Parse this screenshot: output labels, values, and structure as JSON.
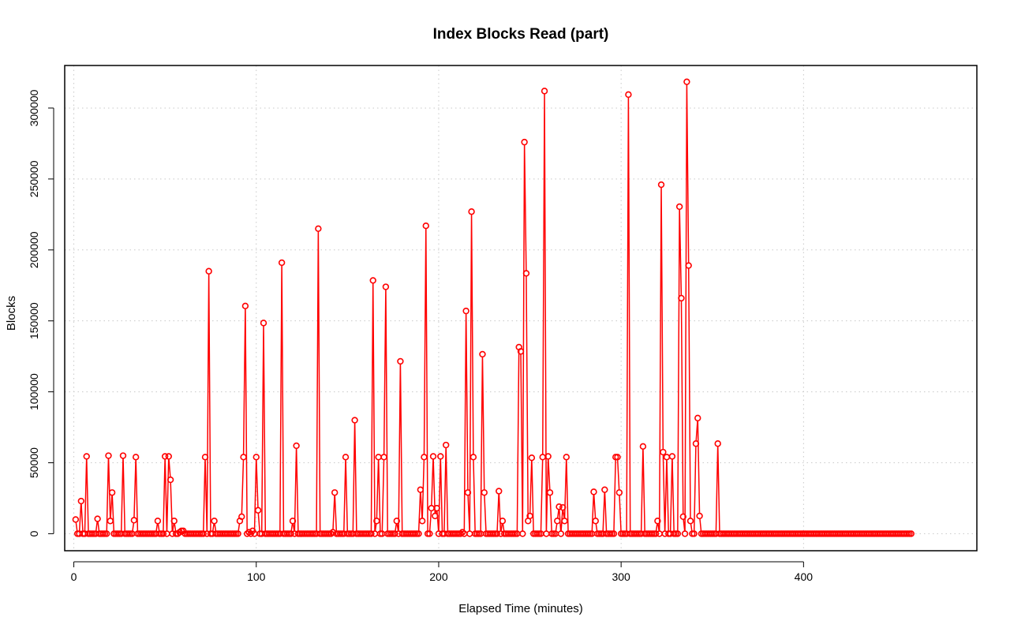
{
  "chart_data": {
    "type": "line",
    "title": "Index Blocks Read (part)",
    "xlabel": "Elapsed Time (minutes)",
    "ylabel": "Blocks",
    "xlim": [
      -5,
      495
    ],
    "ylim": [
      -12000,
      330000
    ],
    "x_ticks": [
      0,
      100,
      200,
      300,
      400
    ],
    "x_tick_labels": [
      "0",
      "100",
      "200",
      "300",
      "400"
    ],
    "y_ticks": [
      0,
      50000,
      100000,
      150000,
      200000,
      250000,
      300000
    ],
    "y_tick_labels": [
      "0",
      "50000",
      "100000",
      "150000",
      "200000",
      "250000",
      "300000"
    ],
    "grid": true,
    "series_color": "#ff0000",
    "x_start": 1,
    "x_step": 1,
    "values": [
      10000,
      0,
      0,
      23000,
      0,
      0,
      54500,
      0,
      0,
      0,
      0,
      0,
      10500,
      0,
      0,
      0,
      0,
      0,
      55000,
      9000,
      29000,
      0,
      0,
      0,
      0,
      0,
      55000,
      0,
      0,
      0,
      0,
      0,
      9500,
      54000,
      0,
      0,
      0,
      0,
      0,
      0,
      0,
      0,
      0,
      0,
      0,
      9000,
      0,
      0,
      0,
      54500,
      0,
      54500,
      38000,
      0,
      9000,
      0,
      0,
      1000,
      2000,
      2000,
      0,
      0,
      0,
      0,
      0,
      0,
      0,
      0,
      0,
      0,
      0,
      54000,
      0,
      185000,
      0,
      0,
      9000,
      0,
      0,
      0,
      0,
      0,
      0,
      0,
      0,
      0,
      0,
      0,
      0,
      0,
      9000,
      12000,
      54000,
      160500,
      0,
      1000,
      0,
      2000,
      0,
      54000,
      16500,
      0,
      0,
      148500,
      0,
      0,
      0,
      0,
      0,
      0,
      0,
      0,
      0,
      191000,
      0,
      0,
      0,
      0,
      0,
      9000,
      0,
      62000,
      0,
      0,
      0,
      0,
      0,
      0,
      0,
      0,
      0,
      0,
      0,
      215000,
      0,
      0,
      0,
      0,
      0,
      0,
      0,
      1000,
      29000,
      0,
      0,
      0,
      0,
      0,
      54000,
      0,
      0,
      0,
      0,
      80000,
      0,
      0,
      0,
      0,
      0,
      0,
      0,
      0,
      0,
      178500,
      0,
      9000,
      54000,
      0,
      0,
      54000,
      174000,
      0,
      0,
      0,
      0,
      0,
      9000,
      0,
      121500,
      0,
      0,
      0,
      0,
      0,
      0,
      0,
      0,
      0,
      0,
      31000,
      9000,
      54000,
      217000,
      0,
      0,
      18000,
      54500,
      12500,
      18000,
      0,
      54500,
      0,
      0,
      62500,
      0,
      0,
      0,
      0,
      0,
      0,
      0,
      0,
      1000,
      0,
      157000,
      29000,
      0,
      227000,
      54000,
      0,
      0,
      0,
      0,
      126500,
      29000,
      0,
      0,
      0,
      0,
      0,
      0,
      0,
      30000,
      0,
      9000,
      0,
      0,
      0,
      0,
      0,
      0,
      0,
      0,
      131500,
      128500,
      0,
      276000,
      183500,
      9000,
      12500,
      53500,
      0,
      0,
      0,
      0,
      0,
      54000,
      312000,
      0,
      54500,
      29000,
      0,
      0,
      0,
      9000,
      19000,
      0,
      18500,
      9000,
      54000,
      0,
      0,
      0,
      0,
      0,
      0,
      0,
      0,
      0,
      0,
      0,
      0,
      0,
      0,
      29500,
      9000,
      0,
      0,
      0,
      0,
      31000,
      0,
      0,
      0,
      0,
      0,
      54000,
      54000,
      29000,
      0,
      0,
      0,
      0,
      309500,
      0,
      0,
      0,
      0,
      0,
      0,
      0,
      61500,
      0,
      0,
      0,
      0,
      0,
      0,
      0,
      9000,
      0,
      246000,
      57500,
      0,
      54000,
      0,
      0,
      54500,
      0,
      0,
      0,
      230500,
      166000,
      12000,
      0,
      318500,
      189000,
      9000,
      0,
      0,
      63500,
      81500,
      12500,
      0,
      0,
      0,
      0,
      0,
      0,
      0,
      0,
      0,
      63500,
      0,
      0,
      0,
      0,
      0,
      0,
      0,
      0,
      0,
      0,
      0,
      0,
      0,
      0,
      0,
      0,
      0,
      0,
      0,
      0,
      0,
      0,
      0,
      0,
      0,
      0,
      0,
      0,
      0,
      0,
      0,
      0,
      0,
      0,
      0,
      0,
      0,
      0,
      0,
      0,
      0,
      0,
      0,
      0,
      0,
      0,
      0,
      0,
      0,
      0,
      0,
      0,
      0,
      0,
      0,
      0,
      0,
      0,
      0,
      0,
      0,
      0,
      0,
      0,
      0,
      0,
      0,
      0,
      0,
      0,
      0,
      0,
      0,
      0,
      0,
      0,
      0,
      0,
      0,
      0,
      0,
      0,
      0,
      0,
      0,
      0,
      0,
      0,
      0,
      0,
      0,
      0,
      0,
      0,
      0,
      0,
      0,
      0,
      0,
      0,
      0,
      0,
      0,
      0,
      0,
      0
    ]
  }
}
